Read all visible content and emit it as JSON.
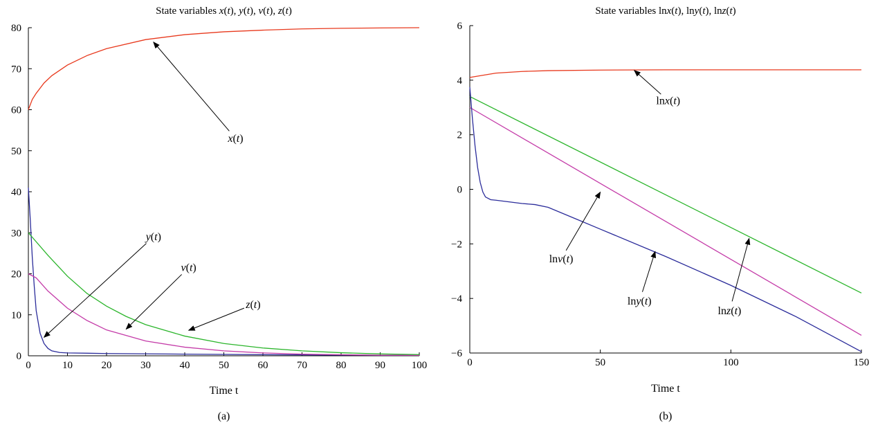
{
  "chart_data": [
    {
      "id": "a",
      "type": "line",
      "title_parts": [
        [
          "State variables ",
          false
        ],
        [
          "x",
          true
        ],
        [
          "(",
          false
        ],
        [
          "t",
          true
        ],
        [
          "), ",
          false
        ],
        [
          "y",
          true
        ],
        [
          "(",
          false
        ],
        [
          "t",
          true
        ],
        [
          "), ",
          false
        ],
        [
          "v",
          true
        ],
        [
          "(",
          false
        ],
        [
          "t",
          true
        ],
        [
          "), ",
          false
        ],
        [
          "z",
          true
        ],
        [
          "(",
          false
        ],
        [
          "t",
          true
        ],
        [
          ")",
          false
        ]
      ],
      "xlabel": "Time t",
      "caption": "(a)",
      "xlim": [
        0,
        100
      ],
      "ylim": [
        0,
        80
      ],
      "xticks": [
        0,
        10,
        20,
        30,
        40,
        50,
        60,
        70,
        80,
        90,
        100
      ],
      "yticks": [
        0,
        10,
        20,
        30,
        40,
        50,
        60,
        70,
        80
      ],
      "series": [
        {
          "key": "x",
          "color": "#e8391d",
          "x": [
            0,
            1,
            2,
            4,
            6,
            10,
            15,
            20,
            30,
            40,
            50,
            60,
            70,
            80,
            90,
            100
          ],
          "y": [
            60,
            62.5,
            64,
            66.5,
            68.3,
            70.9,
            73.2,
            74.9,
            77.1,
            78.3,
            79.0,
            79.4,
            79.7,
            79.85,
            79.93,
            80
          ]
        },
        {
          "key": "y",
          "color": "#2a2b9a",
          "x": [
            0,
            0.5,
            1,
            1.5,
            2,
            3,
            4,
            5,
            6,
            8,
            10,
            20,
            40,
            60,
            80,
            100
          ],
          "y": [
            41,
            33,
            24,
            17,
            11,
            5.5,
            3,
            1.8,
            1.2,
            0.8,
            0.7,
            0.55,
            0.4,
            0.28,
            0.18,
            0.1
          ]
        },
        {
          "key": "v",
          "color": "#c43ba8",
          "x": [
            0,
            2,
            5,
            10,
            15,
            20,
            30,
            40,
            50,
            60,
            70,
            80,
            90,
            100
          ],
          "y": [
            20,
            19,
            15.8,
            11.6,
            8.6,
            6.3,
            3.6,
            2.1,
            1.2,
            0.7,
            0.4,
            0.25,
            0.15,
            0.1
          ]
        },
        {
          "key": "z",
          "color": "#2bb52b",
          "x": [
            0,
            5,
            10,
            15,
            20,
            25,
            30,
            40,
            50,
            60,
            70,
            80,
            90,
            100
          ],
          "y": [
            30,
            24.5,
            19.4,
            15.2,
            12.1,
            9.6,
            7.6,
            4.8,
            3.0,
            1.9,
            1.2,
            0.75,
            0.45,
            0.3
          ]
        }
      ],
      "annotations": [
        {
          "parts": [
            [
              "y",
              true
            ],
            [
              "(",
              false
            ],
            [
              "t",
              true
            ],
            [
              ")",
              false
            ]
          ],
          "text_at": [
            32,
            29
          ],
          "tip": [
            4,
            4.5
          ]
        },
        {
          "parts": [
            [
              "v",
              true
            ],
            [
              "(",
              false
            ],
            [
              "t",
              true
            ],
            [
              ")",
              false
            ]
          ],
          "text_at": [
            41,
            21.5
          ],
          "tip": [
            25,
            6.5
          ]
        },
        {
          "parts": [
            [
              "z",
              true
            ],
            [
              "(",
              false
            ],
            [
              "t",
              true
            ],
            [
              ")",
              false
            ]
          ],
          "text_at": [
            57.5,
            12.5
          ],
          "tip": [
            41,
            6.2
          ]
        },
        {
          "parts": [
            [
              "x",
              true
            ],
            [
              "(",
              false
            ],
            [
              "t",
              true
            ],
            [
              ")",
              false
            ]
          ],
          "text_at": [
            53,
            53
          ],
          "tip": [
            32,
            76.5
          ]
        }
      ]
    },
    {
      "id": "b",
      "type": "line",
      "title_parts": [
        [
          "State variables ln",
          false
        ],
        [
          "x",
          true
        ],
        [
          "(",
          false
        ],
        [
          "t",
          true
        ],
        [
          "), ln",
          false
        ],
        [
          "y",
          true
        ],
        [
          "(",
          false
        ],
        [
          "t",
          true
        ],
        [
          "), ln",
          false
        ],
        [
          "z",
          true
        ],
        [
          "(",
          false
        ],
        [
          "t",
          true
        ],
        [
          ")",
          false
        ]
      ],
      "xlabel": "Time t",
      "caption": "(b)",
      "xlim": [
        0,
        150
      ],
      "ylim": [
        -6,
        6
      ],
      "xticks": [
        0,
        50,
        100,
        150
      ],
      "xtick_labels": [
        "0",
        "50",
        "100",
        "150"
      ],
      "yticks": [
        -6,
        -4,
        -2,
        0,
        2,
        4,
        6
      ],
      "ytick_labels": [
        "−6",
        "−4",
        "−2",
        "0",
        "2",
        "4",
        "6"
      ],
      "series": [
        {
          "key": "lnx",
          "color": "#e8391d",
          "x": [
            0,
            5,
            10,
            20,
            30,
            50,
            75,
            100,
            150
          ],
          "y": [
            4.1,
            4.18,
            4.26,
            4.32,
            4.35,
            4.37,
            4.38,
            4.38,
            4.38
          ]
        },
        {
          "key": "lnz",
          "color": "#2bb52b",
          "x": [
            0,
            150
          ],
          "y": [
            3.4,
            -3.8
          ]
        },
        {
          "key": "lnv",
          "color": "#c43ba8",
          "x": [
            0,
            150
          ],
          "y": [
            3.0,
            -5.35
          ]
        },
        {
          "key": "lny",
          "color": "#2a2b9a",
          "x": [
            0,
            1,
            2,
            3,
            4,
            5,
            6,
            8,
            10,
            15,
            20,
            25,
            30,
            40,
            50,
            75,
            100,
            125,
            150
          ],
          "y": [
            3.75,
            2.6,
            1.6,
            0.8,
            0.25,
            -0.1,
            -0.28,
            -0.38,
            -0.4,
            -0.46,
            -0.52,
            -0.56,
            -0.66,
            -1.06,
            -1.46,
            -2.46,
            -3.52,
            -4.67,
            -5.95
          ]
        }
      ],
      "annotations": [
        {
          "parts": [
            [
              "ln",
              false
            ],
            [
              "x",
              true
            ],
            [
              "(",
              false
            ],
            [
              "t",
              true
            ],
            [
              ")",
              false
            ]
          ],
          "text_at": [
            76,
            3.25
          ],
          "tip": [
            63,
            4.36
          ]
        },
        {
          "parts": [
            [
              "ln",
              false
            ],
            [
              "v",
              true
            ],
            [
              "(",
              false
            ],
            [
              "t",
              true
            ],
            [
              ")",
              false
            ]
          ],
          "text_at": [
            35,
            -2.55
          ],
          "tip": [
            50,
            -0.1
          ]
        },
        {
          "parts": [
            [
              "ln",
              false
            ],
            [
              "y",
              true
            ],
            [
              "(",
              false
            ],
            [
              "t",
              true
            ],
            [
              ")",
              false
            ]
          ],
          "text_at": [
            65,
            -4.1
          ],
          "tip": [
            71,
            -2.28
          ]
        },
        {
          "parts": [
            [
              "ln",
              false
            ],
            [
              "z",
              true
            ],
            [
              "(",
              false
            ],
            [
              "t",
              true
            ],
            [
              ")",
              false
            ]
          ],
          "text_at": [
            99.5,
            -4.45
          ],
          "tip": [
            107,
            -1.8
          ]
        }
      ]
    }
  ]
}
